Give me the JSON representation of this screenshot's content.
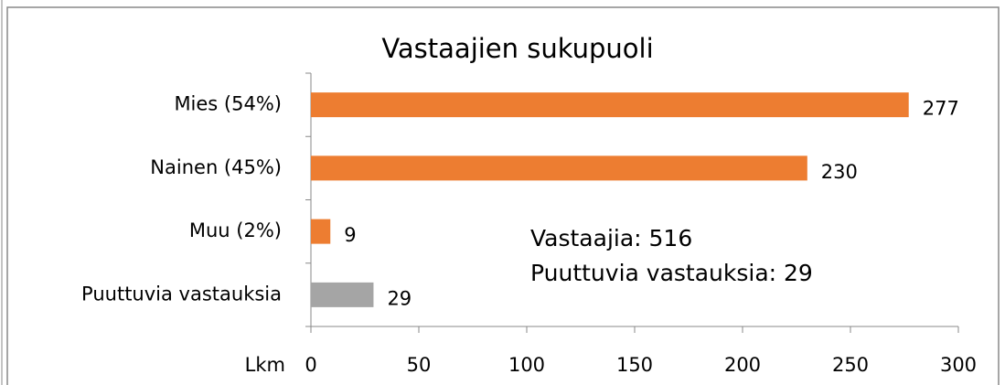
{
  "chart_data": {
    "type": "hbar",
    "title": "Vastaajien sukupuoli",
    "categories": [
      "Mies (54%)",
      "Nainen (45%)",
      "Muu (2%)",
      "Puuttuvia vastauksia"
    ],
    "values": [
      277,
      230,
      9,
      29
    ],
    "colors": [
      "#ed7d31",
      "#ed7d31",
      "#ed7d31",
      "#a5a5a5"
    ],
    "xlabel": "Lkm",
    "xlim": [
      0,
      300
    ],
    "xticks": [
      0,
      50,
      100,
      150,
      200,
      250,
      300
    ],
    "annotations": [
      "Vastaajia: 516",
      "Puuttuvia vastauksia: 29"
    ]
  }
}
